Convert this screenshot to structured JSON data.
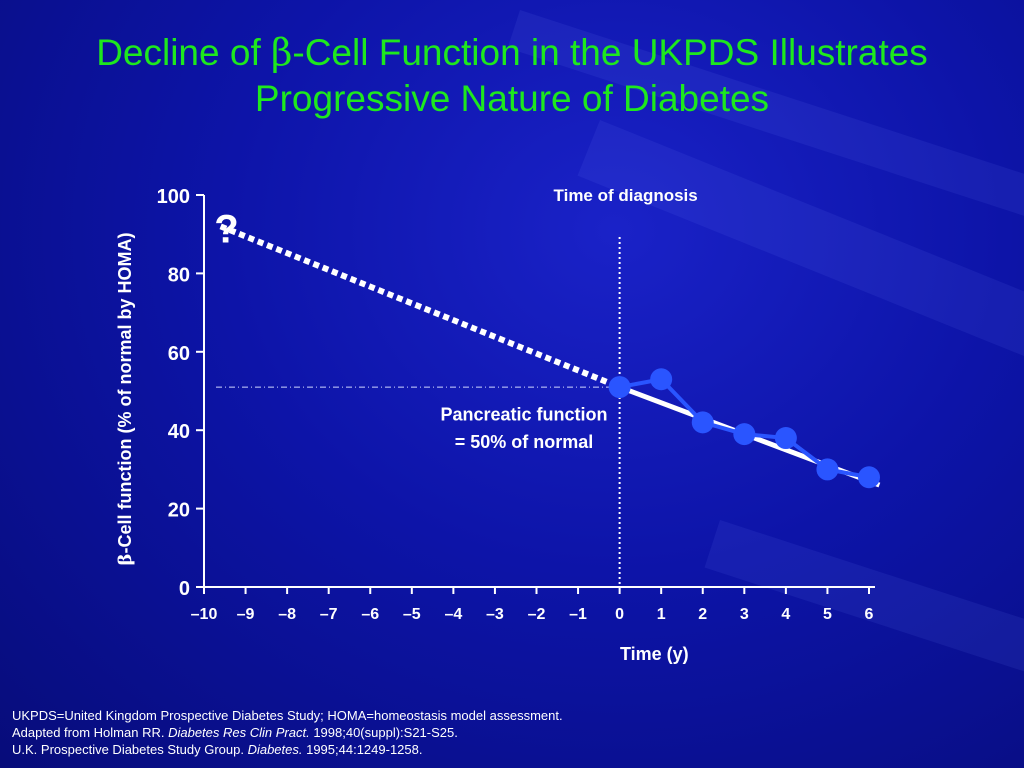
{
  "title": {
    "line1_pre": "Decline of ",
    "line1_greek": "β",
    "line1_post": "-Cell Function in the UKPDS Illustrates",
    "line2": "Progressive Nature of Diabetes"
  },
  "colors": {
    "title": "#1ee81e",
    "data": "#2a55ff",
    "text": "#ffffff"
  },
  "chart_data": {
    "type": "line",
    "xlabel": "Time (y)",
    "ylabel": "β-Cell function (% of normal by HOMA)",
    "xlim": [
      -10,
      6
    ],
    "ylim": [
      0,
      100
    ],
    "xticks": [
      -10,
      -9,
      -8,
      -7,
      -6,
      -5,
      -4,
      -3,
      -2,
      -1,
      0,
      1,
      2,
      3,
      4,
      5,
      6
    ],
    "xtick_labels": [
      "–10",
      "–9",
      "–8",
      "–7",
      "–6",
      "–5",
      "–4",
      "–3",
      "–2",
      "–1",
      "0",
      "1",
      "2",
      "3",
      "4",
      "5",
      "6"
    ],
    "yticks": [
      0,
      20,
      40,
      60,
      80,
      100
    ],
    "grid": false,
    "series": [
      {
        "style": "markers-line",
        "x": [
          0,
          1,
          2,
          3,
          4,
          5,
          6
        ],
        "y": [
          51,
          53,
          42,
          39,
          38,
          30,
          28
        ]
      },
      {
        "style": "dotted-extrapolation",
        "x": [
          -9.6,
          0
        ],
        "y": [
          92,
          51
        ]
      },
      {
        "style": "trend-line",
        "x": [
          0,
          6.25
        ],
        "y": [
          51,
          26
        ]
      }
    ],
    "annotations": {
      "diagnosis_label": "Time of diagnosis",
      "diagnosis_x": 0,
      "question": "?",
      "question_x": -9.7,
      "question_y": 92,
      "reference_y": 51,
      "pancreatic_line1": "Pancreatic function",
      "pancreatic_line2": "= 50% of normal"
    }
  },
  "footnotes": {
    "line1": "UKPDS=United Kingdom Prospective Diabetes Study; HOMA=homeostasis model assessment.",
    "line2_pre": "Adapted from Holman RR. ",
    "line2_italic": "Diabetes Res Clin Pract.",
    "line2_post": " 1998;40(suppl):S21-S25.",
    "line3_pre": "U.K. Prospective Diabetes Study Group. ",
    "line3_italic": "Diabetes.",
    "line3_post": " 1995;44:1249-1258."
  }
}
